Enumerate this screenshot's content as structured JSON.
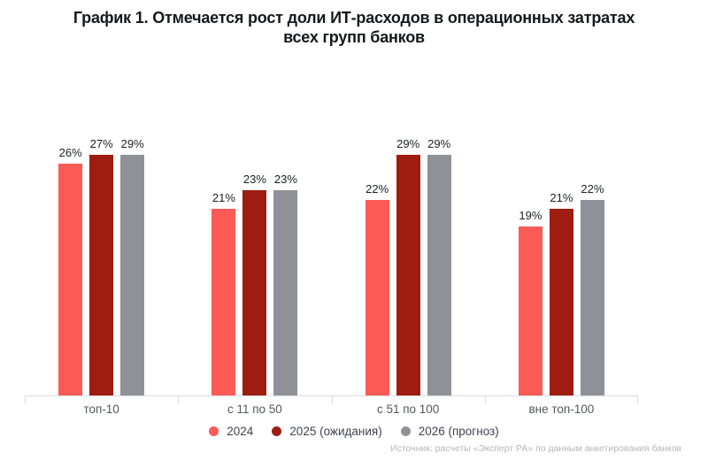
{
  "title": {
    "line1": "График 1. Отмечается рост доли ИТ-расходов в операционных затратах",
    "line2": "всех групп банков"
  },
  "chart_data": {
    "type": "bar",
    "title": "График 1. Отмечается рост доли ИТ-расходов в операционных затратах всех групп банков",
    "categories": [
      "топ-10",
      "с 11 по 50",
      "с 51 по 100",
      "вне топ-100"
    ],
    "series": [
      {
        "key": "2024",
        "legend_label": "2024",
        "color": "#fb5a55",
        "values": [
          26,
          21,
          22,
          19
        ]
      },
      {
        "key": "2025",
        "legend_label": "2025 (ожидания)",
        "color": "#9e1c10",
        "values": [
          27,
          23,
          29,
          21
        ]
      },
      {
        "key": "2026",
        "legend_label": "2026 (прогноз)",
        "color": "#8e9298",
        "values": [
          29,
          23,
          29,
          22
        ]
      }
    ],
    "value_suffix": "%",
    "ylim": [
      0,
      29
    ],
    "grid": false,
    "legend_position": "bottom",
    "data_labels": true
  },
  "source": "Источник: расчеты «Эксперт РА» по данным анкетирования банков",
  "colors": {
    "title": "#16181d",
    "value_label": "#1c1f24",
    "category_label": "#54575b",
    "legend_text": "#3d4551",
    "axis": "#d9dcde",
    "source_text": "#b5b6b8"
  }
}
